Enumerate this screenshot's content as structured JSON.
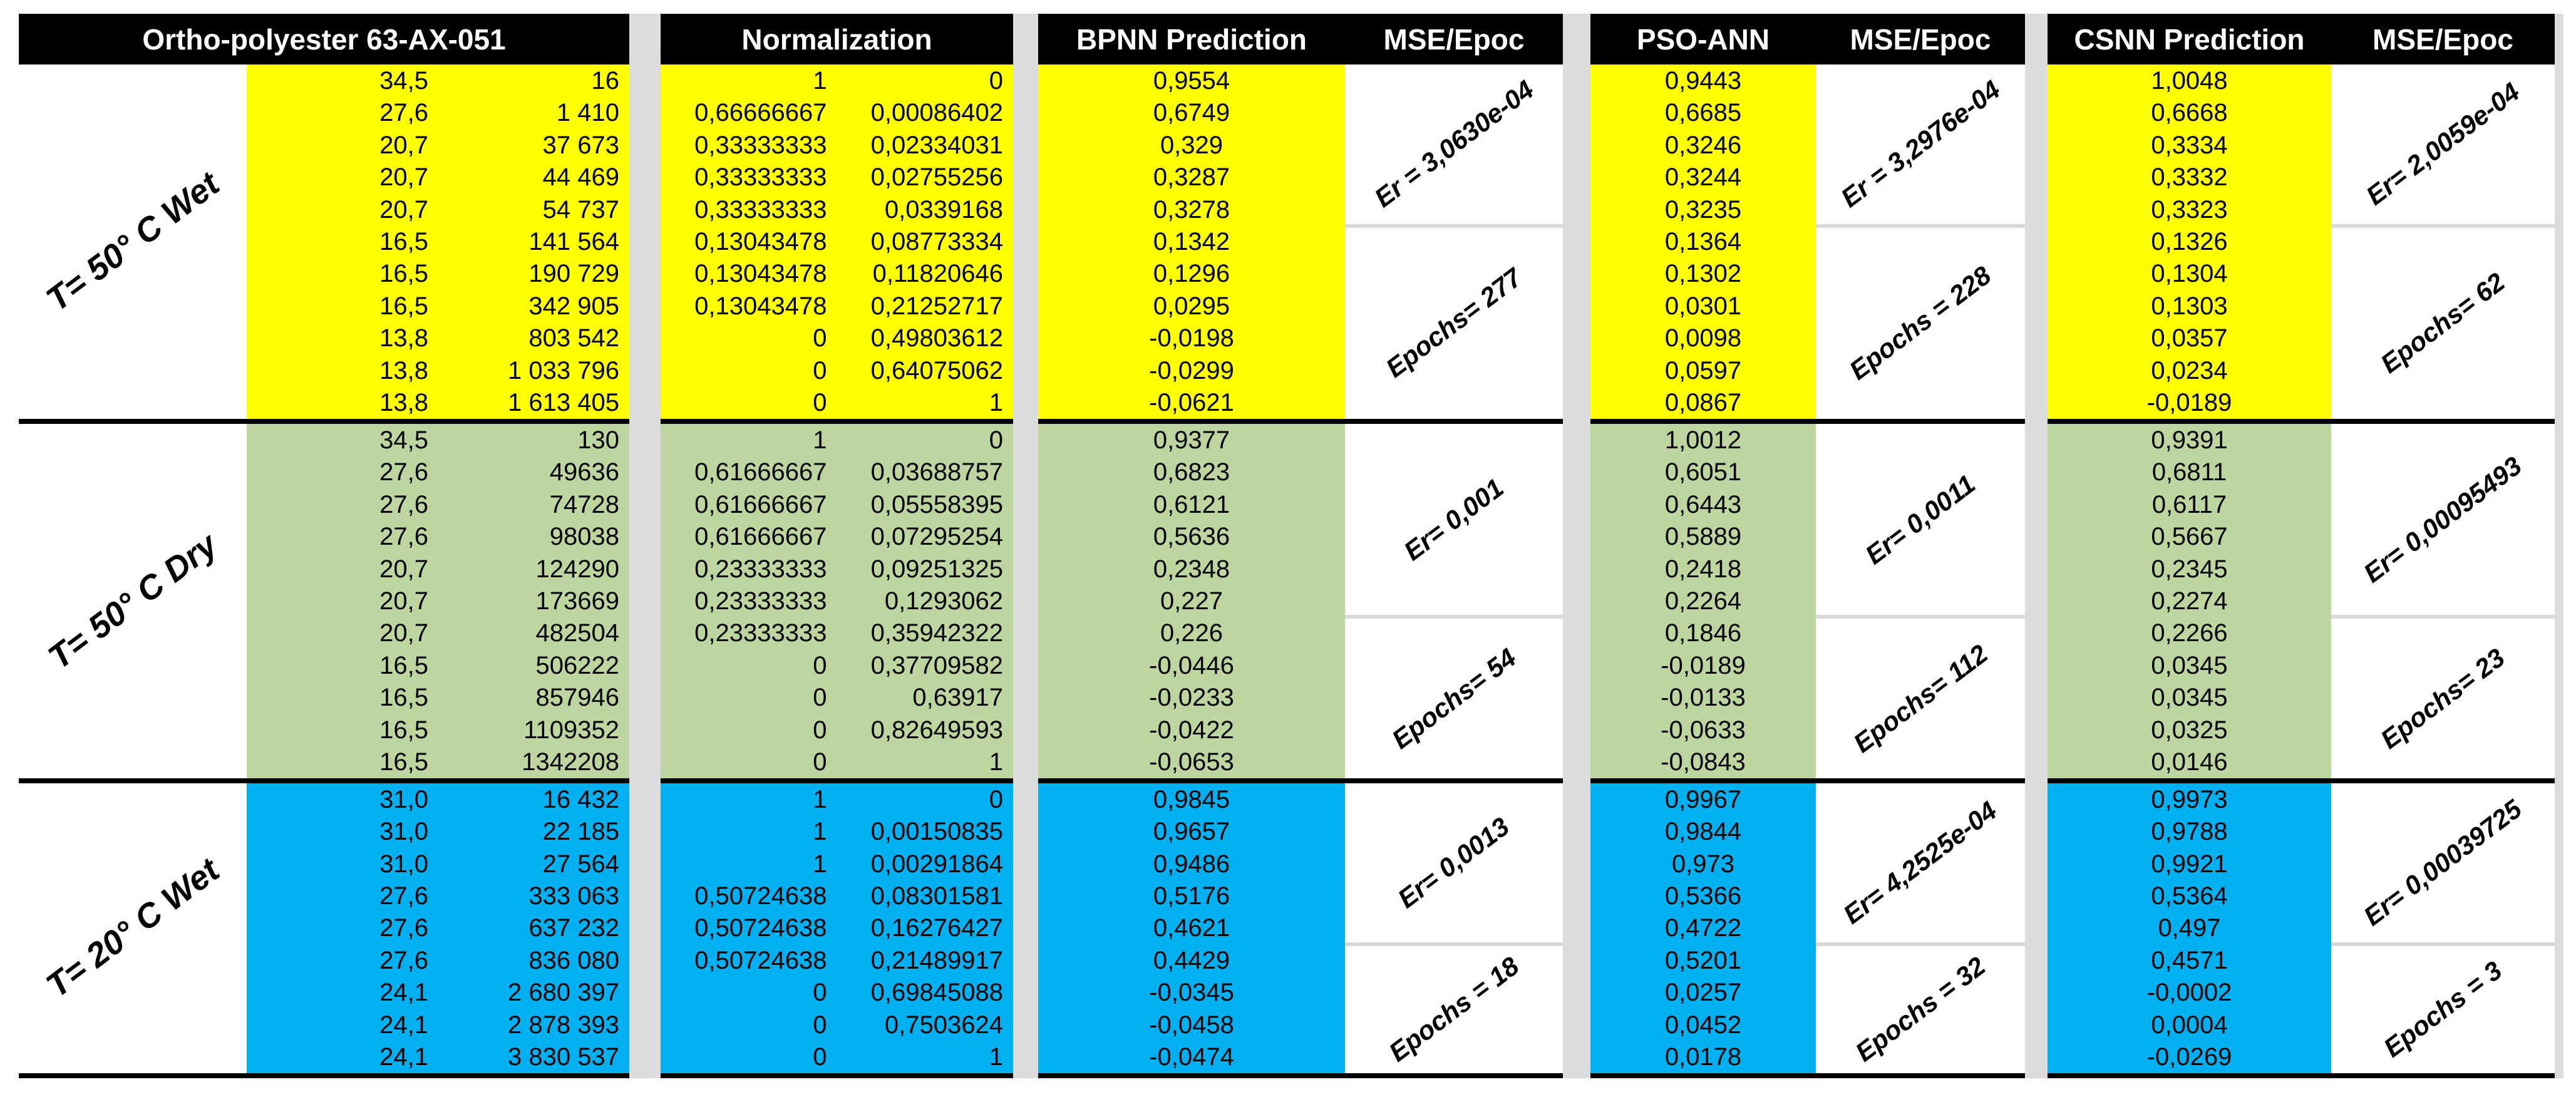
{
  "headers": {
    "sample": "Ortho-polyester 63-AX-051",
    "normalization": "Normalization",
    "bpnn": "BPNN Prediction",
    "pso": "PSO-ANN",
    "csnn": "CSNN Prediction",
    "mse": "MSE/Epoc"
  },
  "colors": {
    "yellow": "#FFFF00",
    "green": "#BDD69F",
    "blue": "#00B0F0",
    "gap_strip": "#DCDCDC",
    "mse_divider": "#D9D9D9",
    "section_border": "#000000",
    "header_bg": "#000000",
    "header_text": "#FFFFFF"
  },
  "sections": [
    {
      "label": "T= 50° C Wet",
      "color": "#FFFF00",
      "er_rows": 5,
      "raw": [
        [
          "34,5",
          "16"
        ],
        [
          "27,6",
          "1 410"
        ],
        [
          "20,7",
          "37 673"
        ],
        [
          "20,7",
          "44 469"
        ],
        [
          "20,7",
          "54 737"
        ],
        [
          "16,5",
          "141 564"
        ],
        [
          "16,5",
          "190 729"
        ],
        [
          "16,5",
          "342 905"
        ],
        [
          "13,8",
          "803 542"
        ],
        [
          "13,8",
          "1 033 796"
        ],
        [
          "13,8",
          "1 613 405"
        ]
      ],
      "norm": [
        [
          "1",
          "0"
        ],
        [
          "0,66666667",
          "0,00086402"
        ],
        [
          "0,33333333",
          "0,02334031"
        ],
        [
          "0,33333333",
          "0,02755256"
        ],
        [
          "0,33333333",
          "0,0339168"
        ],
        [
          "0,13043478",
          "0,08773334"
        ],
        [
          "0,13043478",
          "0,11820646"
        ],
        [
          "0,13043478",
          "0,21252717"
        ],
        [
          "0",
          "0,49803612"
        ],
        [
          "0",
          "0,64075062"
        ],
        [
          "0",
          "1"
        ]
      ],
      "bpnn": {
        "values": [
          "0,9554",
          "0,6749",
          "0,329",
          "0,3287",
          "0,3278",
          "0,1342",
          "0,1296",
          "0,0295",
          "-0,0198",
          "-0,0299",
          "-0,0621"
        ],
        "er": "Er = 3,0630e-04",
        "epochs": "Epochs= 277"
      },
      "pso": {
        "values": [
          "0,9443",
          "0,6685",
          "0,3246",
          "0,3244",
          "0,3235",
          "0,1364",
          "0,1302",
          "0,0301",
          "0,0098",
          "0,0597",
          "0,0867"
        ],
        "er": "Er = 3,2976e-04",
        "epochs": "Epochs = 228"
      },
      "csnn": {
        "values": [
          "1,0048",
          "0,6668",
          "0,3334",
          "0,3332",
          "0,3323",
          "0,1326",
          "0,1304",
          "0,1303",
          "0,0357",
          "0,0234",
          "-0,0189"
        ],
        "er": "Er= 2,0059e-04",
        "epochs": "Epochs= 62"
      }
    },
    {
      "label": "T= 50° C Dry",
      "color": "#BDD69F",
      "er_rows": 6,
      "raw": [
        [
          "34,5",
          "130"
        ],
        [
          "27,6",
          "49636"
        ],
        [
          "27,6",
          "74728"
        ],
        [
          "27,6",
          "98038"
        ],
        [
          "20,7",
          "124290"
        ],
        [
          "20,7",
          "173669"
        ],
        [
          "20,7",
          "482504"
        ],
        [
          "16,5",
          "506222"
        ],
        [
          "16,5",
          "857946"
        ],
        [
          "16,5",
          "1109352"
        ],
        [
          "16,5",
          "1342208"
        ]
      ],
      "norm": [
        [
          "1",
          "0"
        ],
        [
          "0,61666667",
          "0,03688757"
        ],
        [
          "0,61666667",
          "0,05558395"
        ],
        [
          "0,61666667",
          "0,07295254"
        ],
        [
          "0,23333333",
          "0,09251325"
        ],
        [
          "0,23333333",
          "0,1293062"
        ],
        [
          "0,23333333",
          "0,35942322"
        ],
        [
          "0",
          "0,37709582"
        ],
        [
          "0",
          "0,63917"
        ],
        [
          "0",
          "0,82649593"
        ],
        [
          "0",
          "1"
        ]
      ],
      "bpnn": {
        "values": [
          "0,9377",
          "0,6823",
          "0,6121",
          "0,5636",
          "0,2348",
          "0,227",
          "0,226",
          "-0,0446",
          "-0,0233",
          "-0,0422",
          "-0,0653"
        ],
        "er": "Er= 0,001",
        "epochs": "Epochs= 54"
      },
      "pso": {
        "values": [
          "1,0012",
          "0,6051",
          "0,6443",
          "0,5889",
          "0,2418",
          "0,2264",
          "0,1846",
          "-0,0189",
          "-0,0133",
          "-0,0633",
          "-0,0843"
        ],
        "er": "Er= 0,0011",
        "epochs": "Epochs= 112"
      },
      "csnn": {
        "values": [
          "0,9391",
          "0,6811",
          "0,6117",
          "0,5667",
          "0,2345",
          "0,2274",
          "0,2266",
          "0,0345",
          "0,0345",
          "0,0325",
          "0,0146"
        ],
        "er": "Er= 0,00095493",
        "epochs": "Epochs= 23"
      }
    },
    {
      "label": "T= 20° C Wet",
      "color": "#00B0F0",
      "er_rows": 5,
      "raw": [
        [
          "31,0",
          "16 432"
        ],
        [
          "31,0",
          "22 185"
        ],
        [
          "31,0",
          "27 564"
        ],
        [
          "27,6",
          "333 063"
        ],
        [
          "27,6",
          "637 232"
        ],
        [
          "27,6",
          "836 080"
        ],
        [
          "24,1",
          "2 680 397"
        ],
        [
          "24,1",
          "2 878 393"
        ],
        [
          "24,1",
          "3 830 537"
        ]
      ],
      "norm": [
        [
          "1",
          "0"
        ],
        [
          "1",
          "0,00150835"
        ],
        [
          "1",
          "0,00291864"
        ],
        [
          "0,50724638",
          "0,08301581"
        ],
        [
          "0,50724638",
          "0,16276427"
        ],
        [
          "0,50724638",
          "0,21489917"
        ],
        [
          "0",
          "0,69845088"
        ],
        [
          "0",
          "0,7503624"
        ],
        [
          "0",
          "1"
        ]
      ],
      "bpnn": {
        "values": [
          "0,9845",
          "0,9657",
          "0,9486",
          "0,5176",
          "0,4621",
          "0,4429",
          "-0,0345",
          "-0,0458",
          "-0,0474"
        ],
        "er": "Er= 0,0013",
        "epochs": "Epochs = 18"
      },
      "pso": {
        "values": [
          "0,9967",
          "0,9844",
          "0,973",
          "0,5366",
          "0,4722",
          "0,5201",
          "0,0257",
          "0,0452",
          "0,0178"
        ],
        "er": "Er= 4,2525e-04",
        "epochs": "Epochs = 32"
      },
      "csnn": {
        "values": [
          "0,9973",
          "0,9788",
          "0,9921",
          "0,5364",
          "0,497",
          "0,4571",
          "-0,0002",
          "0,0004",
          "-0,0269"
        ],
        "er": "Er= 0,00039725",
        "epochs": "Epochs = 3"
      }
    }
  ]
}
